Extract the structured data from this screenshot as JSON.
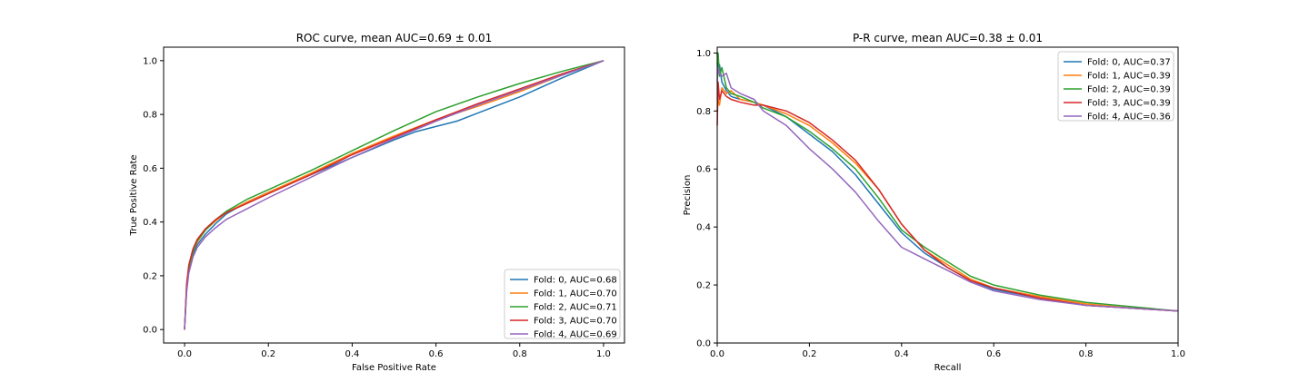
{
  "chart_data": [
    {
      "type": "line",
      "title": "ROC curve, mean AUC=0.69 ± 0.01",
      "xlabel": "False Positive Rate",
      "ylabel": "True Positive Rate",
      "xlim": [
        -0.05,
        1.05
      ],
      "ylim": [
        -0.05,
        1.05
      ],
      "xticks": [
        0.0,
        0.2,
        0.4,
        0.6,
        0.8,
        1.0
      ],
      "xtick_labels": [
        "0.0",
        "0.2",
        "0.4",
        "0.6",
        "0.8",
        "1.0"
      ],
      "yticks": [
        0.0,
        0.2,
        0.4,
        0.6,
        0.8,
        1.0
      ],
      "ytick_labels": [
        "0.0",
        "0.2",
        "0.4",
        "0.6",
        "0.8",
        "1.0"
      ],
      "grid": false,
      "legend_position": "lower-right",
      "series": [
        {
          "name": "Fold: 0, AUC=0.68",
          "color": "#1f77b4",
          "x": [
            0,
            0.005,
            0.01,
            0.02,
            0.03,
            0.05,
            0.075,
            0.1,
            0.15,
            0.2,
            0.3,
            0.4,
            0.5,
            0.55,
            0.6,
            0.65,
            0.7,
            0.8,
            0.9,
            1.0
          ],
          "y": [
            0,
            0.15,
            0.22,
            0.28,
            0.315,
            0.355,
            0.395,
            0.43,
            0.475,
            0.51,
            0.575,
            0.64,
            0.705,
            0.735,
            0.755,
            0.775,
            0.805,
            0.865,
            0.935,
            1.0
          ]
        },
        {
          "name": "Fold: 1, AUC=0.70",
          "color": "#ff7f0e",
          "x": [
            0,
            0.005,
            0.01,
            0.02,
            0.03,
            0.05,
            0.075,
            0.1,
            0.15,
            0.2,
            0.3,
            0.4,
            0.5,
            0.6,
            0.7,
            0.8,
            0.9,
            1.0
          ],
          "y": [
            0,
            0.16,
            0.23,
            0.29,
            0.325,
            0.37,
            0.405,
            0.435,
            0.475,
            0.51,
            0.58,
            0.655,
            0.72,
            0.78,
            0.83,
            0.885,
            0.945,
            1.0
          ]
        },
        {
          "name": "Fold: 2, AUC=0.71",
          "color": "#2ca02c",
          "x": [
            0,
            0.005,
            0.01,
            0.02,
            0.03,
            0.05,
            0.075,
            0.1,
            0.15,
            0.2,
            0.3,
            0.4,
            0.5,
            0.6,
            0.7,
            0.75,
            0.8,
            0.9,
            1.0
          ],
          "y": [
            0,
            0.16,
            0.23,
            0.29,
            0.33,
            0.37,
            0.41,
            0.44,
            0.485,
            0.52,
            0.59,
            0.665,
            0.74,
            0.81,
            0.865,
            0.89,
            0.915,
            0.96,
            1.0
          ]
        },
        {
          "name": "Fold: 3, AUC=0.70",
          "color": "#d62728",
          "x": [
            0,
            0.005,
            0.01,
            0.02,
            0.03,
            0.05,
            0.075,
            0.1,
            0.15,
            0.2,
            0.3,
            0.4,
            0.5,
            0.6,
            0.7,
            0.8,
            0.9,
            1.0
          ],
          "y": [
            0,
            0.17,
            0.24,
            0.3,
            0.335,
            0.375,
            0.41,
            0.435,
            0.47,
            0.505,
            0.575,
            0.65,
            0.715,
            0.78,
            0.84,
            0.895,
            0.95,
            1.0
          ]
        },
        {
          "name": "Fold: 4, AUC=0.69",
          "color": "#9467bd",
          "x": [
            0,
            0.005,
            0.01,
            0.02,
            0.03,
            0.05,
            0.075,
            0.1,
            0.15,
            0.2,
            0.3,
            0.4,
            0.5,
            0.6,
            0.7,
            0.8,
            0.9,
            1.0
          ],
          "y": [
            0,
            0.14,
            0.21,
            0.27,
            0.305,
            0.345,
            0.38,
            0.41,
            0.45,
            0.49,
            0.565,
            0.64,
            0.71,
            0.775,
            0.835,
            0.89,
            0.945,
            1.0
          ]
        }
      ]
    },
    {
      "type": "line",
      "title": "P-R curve, mean AUC=0.38 ± 0.01",
      "xlabel": "Recall",
      "ylabel": "Precision",
      "xlim": [
        0.0,
        1.0
      ],
      "ylim": [
        0.0,
        1.02
      ],
      "xticks": [
        0.0,
        0.2,
        0.4,
        0.6,
        0.8,
        1.0
      ],
      "xtick_labels": [
        "0.0",
        "0.2",
        "0.4",
        "0.6",
        "0.8",
        "1.0"
      ],
      "yticks": [
        0.0,
        0.2,
        0.4,
        0.6,
        0.8,
        1.0
      ],
      "ytick_labels": [
        "0.0",
        "0.2",
        "0.4",
        "0.6",
        "0.8",
        "1.0"
      ],
      "grid": false,
      "legend_position": "upper-right",
      "series": [
        {
          "name": "Fold: 0, AUC=0.37",
          "color": "#1f77b4",
          "x": [
            0.0,
            0.002,
            0.005,
            0.01,
            0.02,
            0.03,
            0.05,
            0.08,
            0.1,
            0.15,
            0.2,
            0.25,
            0.3,
            0.35,
            0.4,
            0.45,
            0.5,
            0.55,
            0.6,
            0.7,
            0.8,
            0.9,
            1.0
          ],
          "y": [
            1.0,
            0.93,
            0.96,
            0.9,
            0.87,
            0.85,
            0.84,
            0.83,
            0.82,
            0.78,
            0.72,
            0.66,
            0.58,
            0.48,
            0.38,
            0.31,
            0.26,
            0.215,
            0.185,
            0.155,
            0.13,
            0.12,
            0.11
          ]
        },
        {
          "name": "Fold: 1, AUC=0.39",
          "color": "#ff7f0e",
          "x": [
            0.0,
            0.002,
            0.005,
            0.01,
            0.02,
            0.03,
            0.05,
            0.08,
            0.1,
            0.15,
            0.2,
            0.25,
            0.3,
            0.35,
            0.4,
            0.45,
            0.5,
            0.55,
            0.6,
            0.7,
            0.8,
            0.9,
            1.0
          ],
          "y": [
            0.8,
            0.84,
            0.82,
            0.88,
            0.86,
            0.87,
            0.84,
            0.83,
            0.82,
            0.79,
            0.75,
            0.69,
            0.62,
            0.53,
            0.41,
            0.32,
            0.27,
            0.22,
            0.19,
            0.16,
            0.135,
            0.12,
            0.11
          ]
        },
        {
          "name": "Fold: 2, AUC=0.39",
          "color": "#2ca02c",
          "x": [
            0.0,
            0.002,
            0.005,
            0.01,
            0.02,
            0.03,
            0.05,
            0.08,
            0.1,
            0.15,
            0.2,
            0.25,
            0.3,
            0.35,
            0.4,
            0.45,
            0.5,
            0.55,
            0.6,
            0.7,
            0.8,
            0.9,
            1.0
          ],
          "y": [
            0.96,
            1.0,
            0.92,
            0.95,
            0.88,
            0.86,
            0.85,
            0.83,
            0.81,
            0.78,
            0.73,
            0.67,
            0.6,
            0.5,
            0.39,
            0.33,
            0.28,
            0.23,
            0.2,
            0.165,
            0.14,
            0.125,
            0.11
          ]
        },
        {
          "name": "Fold: 3, AUC=0.39",
          "color": "#d62728",
          "x": [
            0.0,
            0.002,
            0.005,
            0.01,
            0.02,
            0.03,
            0.05,
            0.08,
            0.1,
            0.15,
            0.2,
            0.25,
            0.3,
            0.35,
            0.4,
            0.45,
            0.5,
            0.55,
            0.6,
            0.7,
            0.8,
            0.9,
            1.0
          ],
          "y": [
            0.75,
            0.9,
            0.84,
            0.87,
            0.85,
            0.84,
            0.83,
            0.82,
            0.82,
            0.8,
            0.76,
            0.7,
            0.63,
            0.53,
            0.41,
            0.32,
            0.26,
            0.215,
            0.19,
            0.155,
            0.13,
            0.12,
            0.11
          ]
        },
        {
          "name": "Fold: 4, AUC=0.36",
          "color": "#9467bd",
          "x": [
            0.0,
            0.002,
            0.005,
            0.01,
            0.02,
            0.03,
            0.05,
            0.08,
            0.1,
            0.15,
            0.2,
            0.25,
            0.3,
            0.35,
            0.4,
            0.45,
            0.5,
            0.55,
            0.6,
            0.7,
            0.8,
            0.9,
            1.0
          ],
          "y": [
            0.9,
            0.95,
            0.93,
            0.92,
            0.93,
            0.88,
            0.86,
            0.84,
            0.8,
            0.75,
            0.67,
            0.6,
            0.52,
            0.42,
            0.33,
            0.29,
            0.25,
            0.21,
            0.18,
            0.15,
            0.13,
            0.12,
            0.11
          ]
        }
      ]
    }
  ]
}
